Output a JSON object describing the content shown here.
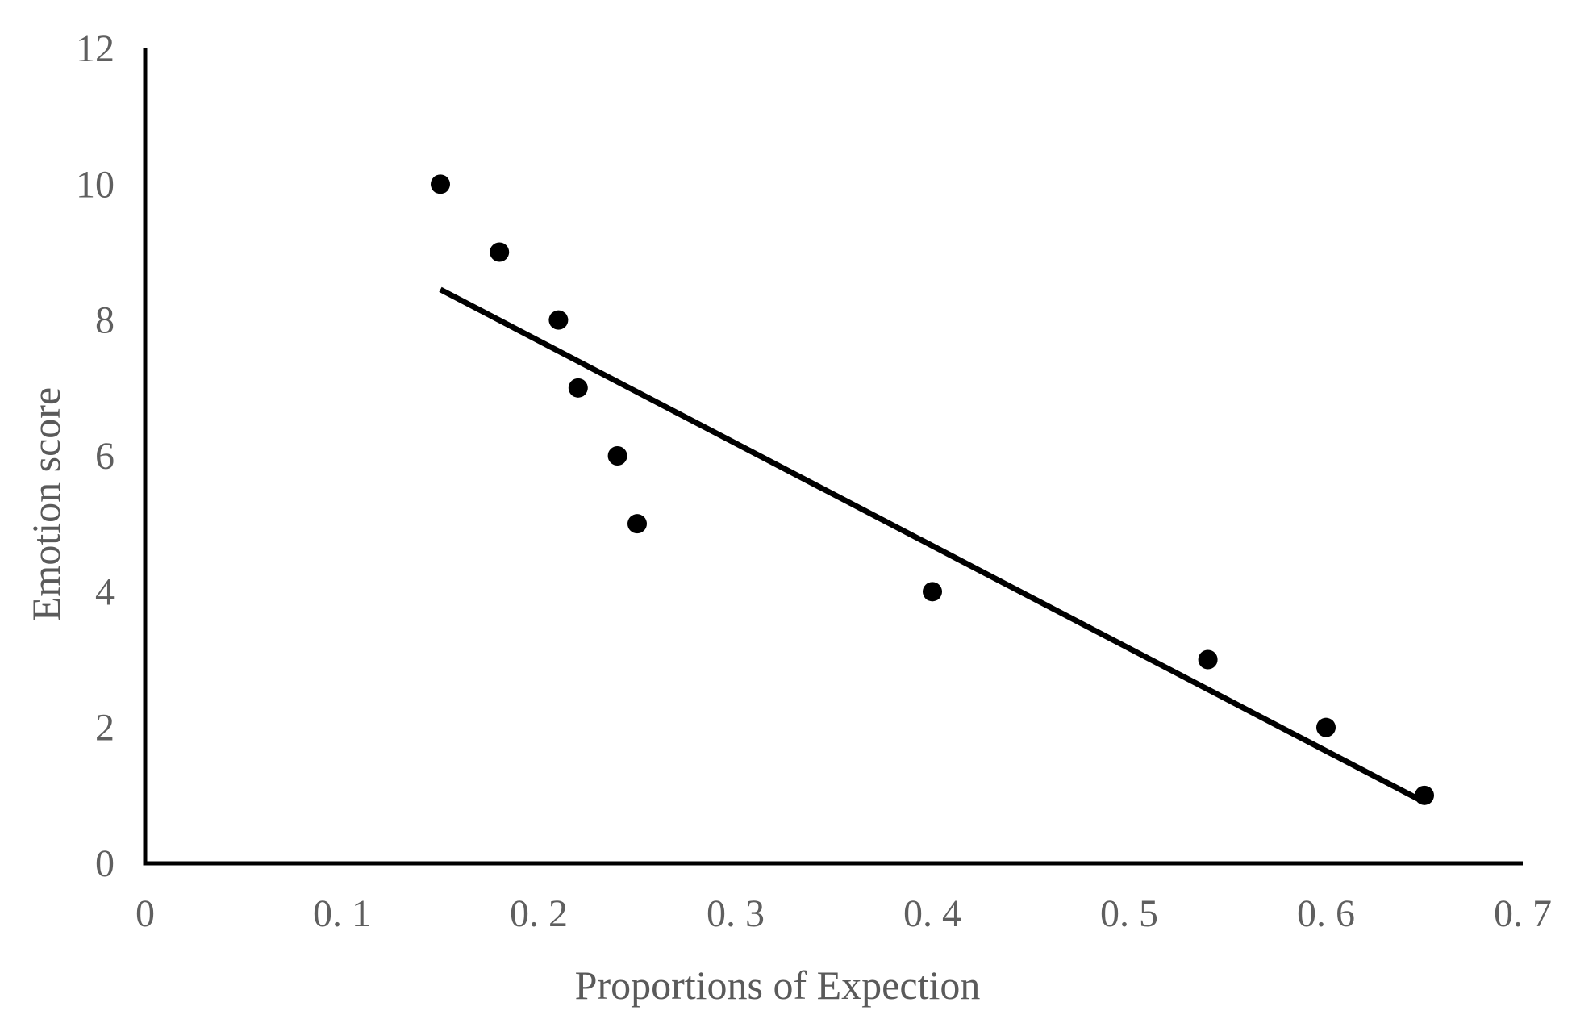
{
  "chart_data": {
    "type": "scatter",
    "title": "",
    "xlabel": "Proportions of Expection",
    "ylabel": "Emotion score",
    "xlim": [
      0,
      0.7
    ],
    "ylim": [
      0,
      12
    ],
    "x_ticks": [
      0,
      0.1,
      0.2,
      0.3,
      0.4,
      0.5,
      0.6,
      0.7
    ],
    "x_tick_labels": [
      "0",
      "0. 1",
      "0. 2",
      "0. 3",
      "0. 4",
      "0. 5",
      "0. 6",
      "0. 7"
    ],
    "y_ticks": [
      0,
      2,
      4,
      6,
      8,
      10,
      12
    ],
    "y_tick_labels": [
      "0",
      "2",
      "4",
      "6",
      "8",
      "10",
      "12"
    ],
    "grid": false,
    "legend": "none",
    "series": [
      {
        "values": [
          {
            "x": 0.15,
            "y": 10
          },
          {
            "x": 0.18,
            "y": 9
          },
          {
            "x": 0.21,
            "y": 8
          },
          {
            "x": 0.22,
            "y": 7
          },
          {
            "x": 0.24,
            "y": 6
          },
          {
            "x": 0.25,
            "y": 5
          },
          {
            "x": 0.4,
            "y": 4
          },
          {
            "x": 0.54,
            "y": 3
          },
          {
            "x": 0.6,
            "y": 2
          },
          {
            "x": 0.65,
            "y": 1
          }
        ],
        "marker": "circle",
        "color": "#000000"
      }
    ],
    "trendline": {
      "type": "linear",
      "from": {
        "x": 0.15,
        "y": 8.45
      },
      "to": {
        "x": 0.65,
        "y": 0.9
      },
      "color": "#000000"
    }
  }
}
